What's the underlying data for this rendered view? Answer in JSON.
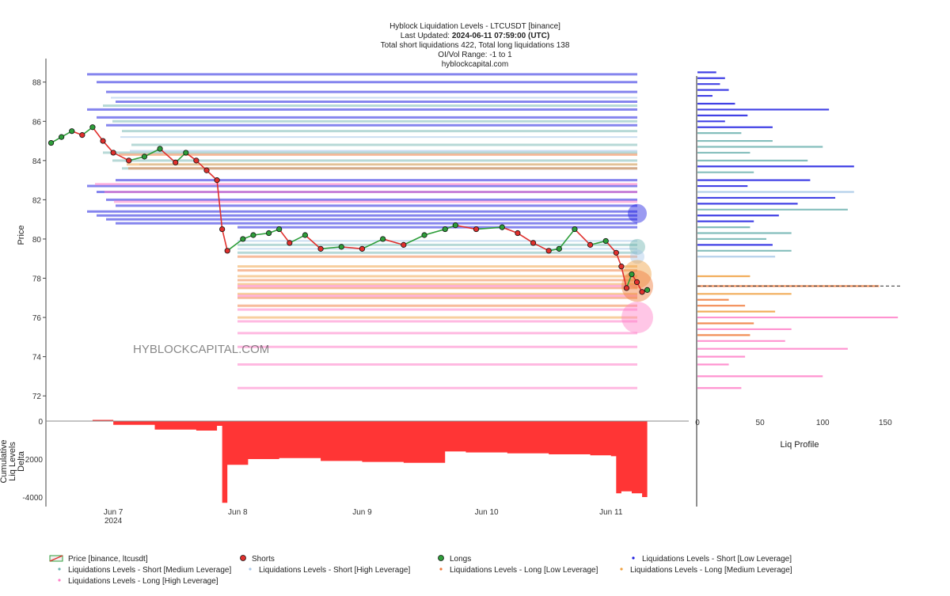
{
  "header": {
    "title": "Hyblock Liquidation Levels - LTCUSDT [binance]",
    "updated_prefix": "Last Updated: ",
    "updated_value": "2024-06-11 07:59:00 (UTC)",
    "totals": "Total short liquidations 422, Total long liquidations 138",
    "range": "OI/Vol Range: -1 to 1",
    "site": "hyblockcapital.com"
  },
  "watermark": "HYBLOCKCAPITAL.COM",
  "colors": {
    "up": "#2e9e3a",
    "down": "#e0302d",
    "short_low": "#2020e0",
    "short_med": "#6fb3b0",
    "short_high": "#a8c8e8",
    "long_low": "#f07a3a",
    "long_med": "#f0a040",
    "long_high": "#ff80c8",
    "delta": "#ff2a2a"
  },
  "legend": [
    {
      "key": "price",
      "label": "Price [binance, ltcusdt]"
    },
    {
      "key": "shorts",
      "label": "Shorts"
    },
    {
      "key": "longs",
      "label": "Longs"
    },
    {
      "key": "short_low",
      "label": "Liquidations Levels - Short [Low Leverage]"
    },
    {
      "key": "short_med",
      "label": "Liquidations Levels - Short [Medium Leverage]"
    },
    {
      "key": "short_high",
      "label": "Liquidations Levels - Short [High Leverage]"
    },
    {
      "key": "long_low",
      "label": "Liquidations Levels - Long [Low Leverage]"
    },
    {
      "key": "long_med",
      "label": "Liquidations Levels - Long [Medium Leverage]"
    },
    {
      "key": "long_high",
      "label": "Liquidations Levels - Long [High Leverage]"
    }
  ],
  "chart_data": [
    {
      "type": "line",
      "ylabel": "Price",
      "ylim": [
        71.2,
        89.2
      ],
      "yticks": [
        72,
        74,
        76,
        78,
        80,
        82,
        84,
        86,
        88
      ],
      "xlim": [
        "2024-06-06 11:00",
        "2024-06-11 15:00"
      ],
      "xticks": [
        {
          "label": "Jun 7",
          "sublabel": "2024",
          "t": "2024-06-07 00:00"
        },
        {
          "label": "Jun 8",
          "sublabel": "",
          "t": "2024-06-08 00:00"
        },
        {
          "label": "Jun 9",
          "sublabel": "",
          "t": "2024-06-09 00:00"
        },
        {
          "label": "Jun 10",
          "sublabel": "",
          "t": "2024-06-10 00:00"
        },
        {
          "label": "Jun 11",
          "sublabel": "",
          "t": "2024-06-11 00:00"
        }
      ],
      "series": [
        {
          "name": "Price [binance, ltcusdt]",
          "x": [
            "2024-06-06 12:00",
            "2024-06-06 14:00",
            "2024-06-06 16:00",
            "2024-06-06 18:00",
            "2024-06-06 20:00",
            "2024-06-06 22:00",
            "2024-06-07 00:00",
            "2024-06-07 03:00",
            "2024-06-07 06:00",
            "2024-06-07 09:00",
            "2024-06-07 12:00",
            "2024-06-07 14:00",
            "2024-06-07 16:00",
            "2024-06-07 18:00",
            "2024-06-07 20:00",
            "2024-06-07 21:00",
            "2024-06-07 22:00",
            "2024-06-08 01:00",
            "2024-06-08 03:00",
            "2024-06-08 06:00",
            "2024-06-08 08:00",
            "2024-06-08 10:00",
            "2024-06-08 13:00",
            "2024-06-08 16:00",
            "2024-06-08 20:00",
            "2024-06-09 00:00",
            "2024-06-09 04:00",
            "2024-06-09 08:00",
            "2024-06-09 12:00",
            "2024-06-09 16:00",
            "2024-06-09 18:00",
            "2024-06-09 22:00",
            "2024-06-10 03:00",
            "2024-06-10 06:00",
            "2024-06-10 09:00",
            "2024-06-10 12:00",
            "2024-06-10 14:00",
            "2024-06-10 17:00",
            "2024-06-10 20:00",
            "2024-06-10 23:00",
            "2024-06-11 01:00",
            "2024-06-11 02:00",
            "2024-06-11 03:00",
            "2024-06-11 04:00",
            "2024-06-11 05:00",
            "2024-06-11 06:00",
            "2024-06-11 07:00"
          ],
          "y": [
            84.9,
            85.2,
            85.5,
            85.3,
            85.7,
            85.0,
            84.4,
            84.0,
            84.2,
            84.6,
            83.9,
            84.4,
            84.0,
            83.5,
            83.0,
            80.5,
            79.4,
            80.0,
            80.2,
            80.3,
            80.5,
            79.8,
            80.2,
            79.5,
            79.6,
            79.5,
            80.0,
            79.7,
            80.2,
            80.5,
            80.7,
            80.5,
            80.6,
            80.3,
            79.8,
            79.4,
            79.5,
            80.5,
            79.7,
            79.9,
            79.3,
            78.6,
            77.5,
            78.2,
            77.8,
            77.3,
            77.4
          ]
        }
      ],
      "liquidation_levels": {
        "short_low": [
          88.4,
          88.0,
          87.5,
          87.0,
          86.6,
          86.2,
          85.8,
          83.0,
          82.7,
          82.4,
          82.0,
          81.7,
          81.4,
          81.2,
          81.0,
          80.8,
          80.6
        ],
        "short_med": [
          86.8,
          86.0,
          85.5,
          84.8,
          84.4,
          84.0,
          83.6,
          79.7,
          79.3
        ],
        "short_high": [
          87.2,
          85.2,
          84.5,
          83.8,
          79.9,
          79.5
        ],
        "long_low": [
          84.3,
          83.6,
          79.1,
          78.4,
          77.9,
          77.5,
          77.0,
          76.6
        ],
        "long_med": [
          83.8,
          78.6,
          78.1,
          77.7,
          77.2,
          76.0
        ],
        "long_high": [
          82.8,
          82.4,
          81.9,
          77.6,
          77.1,
          76.4,
          75.8,
          75.2,
          74.5,
          73.6,
          72.4
        ]
      }
    },
    {
      "type": "area",
      "ylabel": "Cumulative Liq Levels Delta",
      "yticks": [
        0,
        -2000,
        -4000
      ],
      "ylim": [
        -4500,
        250
      ],
      "x": [
        "2024-06-06 12:00",
        "2024-06-06 20:00",
        "2024-06-07 00:00",
        "2024-06-07 08:00",
        "2024-06-07 16:00",
        "2024-06-07 20:00",
        "2024-06-07 21:00",
        "2024-06-07 22:00",
        "2024-06-08 02:00",
        "2024-06-08 08:00",
        "2024-06-08 16:00",
        "2024-06-09 00:00",
        "2024-06-09 08:00",
        "2024-06-09 16:00",
        "2024-06-09 20:00",
        "2024-06-10 04:00",
        "2024-06-10 12:00",
        "2024-06-10 20:00",
        "2024-06-11 00:00",
        "2024-06-11 01:00",
        "2024-06-11 02:00",
        "2024-06-11 04:00",
        "2024-06-11 06:00",
        "2024-06-11 07:00"
      ],
      "values": [
        0,
        60,
        -200,
        -450,
        -500,
        -250,
        -4300,
        -2300,
        -2000,
        -1950,
        -2100,
        -2150,
        -2200,
        -1600,
        -1650,
        -1700,
        -1750,
        -1800,
        -1850,
        -3800,
        -3700,
        -3800,
        -4000,
        -4300
      ]
    },
    {
      "type": "bar",
      "xlabel": "Liq Profile",
      "xticks": [
        0,
        50,
        100,
        150
      ],
      "xlim": [
        0,
        170
      ],
      "current_price": 77.6,
      "bars": [
        {
          "price": 88.5,
          "value": 15,
          "kind": "short_low"
        },
        {
          "price": 88.2,
          "value": 22,
          "kind": "short_low"
        },
        {
          "price": 87.9,
          "value": 18,
          "kind": "short_low"
        },
        {
          "price": 87.6,
          "value": 25,
          "kind": "short_low"
        },
        {
          "price": 87.3,
          "value": 12,
          "kind": "short_low"
        },
        {
          "price": 86.9,
          "value": 30,
          "kind": "short_low"
        },
        {
          "price": 86.6,
          "value": 105,
          "kind": "short_low"
        },
        {
          "price": 86.3,
          "value": 40,
          "kind": "short_low"
        },
        {
          "price": 86.0,
          "value": 22,
          "kind": "short_low"
        },
        {
          "price": 85.7,
          "value": 60,
          "kind": "short_low"
        },
        {
          "price": 85.4,
          "value": 35,
          "kind": "short_med"
        },
        {
          "price": 85.0,
          "value": 60,
          "kind": "short_med"
        },
        {
          "price": 84.7,
          "value": 100,
          "kind": "short_med"
        },
        {
          "price": 84.4,
          "value": 42,
          "kind": "short_med"
        },
        {
          "price": 84.0,
          "value": 88,
          "kind": "short_med"
        },
        {
          "price": 83.7,
          "value": 125,
          "kind": "short_low"
        },
        {
          "price": 83.4,
          "value": 45,
          "kind": "short_med"
        },
        {
          "price": 83.0,
          "value": 90,
          "kind": "short_low"
        },
        {
          "price": 82.7,
          "value": 40,
          "kind": "short_low"
        },
        {
          "price": 82.4,
          "value": 125,
          "kind": "short_high"
        },
        {
          "price": 82.1,
          "value": 110,
          "kind": "short_low"
        },
        {
          "price": 81.8,
          "value": 80,
          "kind": "short_low"
        },
        {
          "price": 81.5,
          "value": 120,
          "kind": "short_med"
        },
        {
          "price": 81.2,
          "value": 65,
          "kind": "short_low"
        },
        {
          "price": 80.9,
          "value": 45,
          "kind": "short_low"
        },
        {
          "price": 80.6,
          "value": 42,
          "kind": "short_med"
        },
        {
          "price": 80.3,
          "value": 75,
          "kind": "short_med"
        },
        {
          "price": 80.0,
          "value": 55,
          "kind": "short_med"
        },
        {
          "price": 79.7,
          "value": 60,
          "kind": "short_low"
        },
        {
          "price": 79.4,
          "value": 75,
          "kind": "short_med"
        },
        {
          "price": 79.1,
          "value": 62,
          "kind": "short_high"
        },
        {
          "price": 78.1,
          "value": 42,
          "kind": "long_med"
        },
        {
          "price": 77.6,
          "value": 145,
          "kind": "long_low"
        },
        {
          "price": 77.2,
          "value": 75,
          "kind": "long_med"
        },
        {
          "price": 76.9,
          "value": 25,
          "kind": "long_low"
        },
        {
          "price": 76.6,
          "value": 38,
          "kind": "long_low"
        },
        {
          "price": 76.3,
          "value": 62,
          "kind": "long_med"
        },
        {
          "price": 76.0,
          "value": 160,
          "kind": "long_high"
        },
        {
          "price": 75.7,
          "value": 45,
          "kind": "long_low"
        },
        {
          "price": 75.4,
          "value": 75,
          "kind": "long_high"
        },
        {
          "price": 75.1,
          "value": 42,
          "kind": "long_low"
        },
        {
          "price": 74.8,
          "value": 70,
          "kind": "long_high"
        },
        {
          "price": 74.4,
          "value": 120,
          "kind": "long_high"
        },
        {
          "price": 74.0,
          "value": 38,
          "kind": "long_high"
        },
        {
          "price": 73.6,
          "value": 25,
          "kind": "long_high"
        },
        {
          "price": 73.0,
          "value": 100,
          "kind": "long_high"
        },
        {
          "price": 72.4,
          "value": 35,
          "kind": "long_high"
        }
      ]
    }
  ]
}
